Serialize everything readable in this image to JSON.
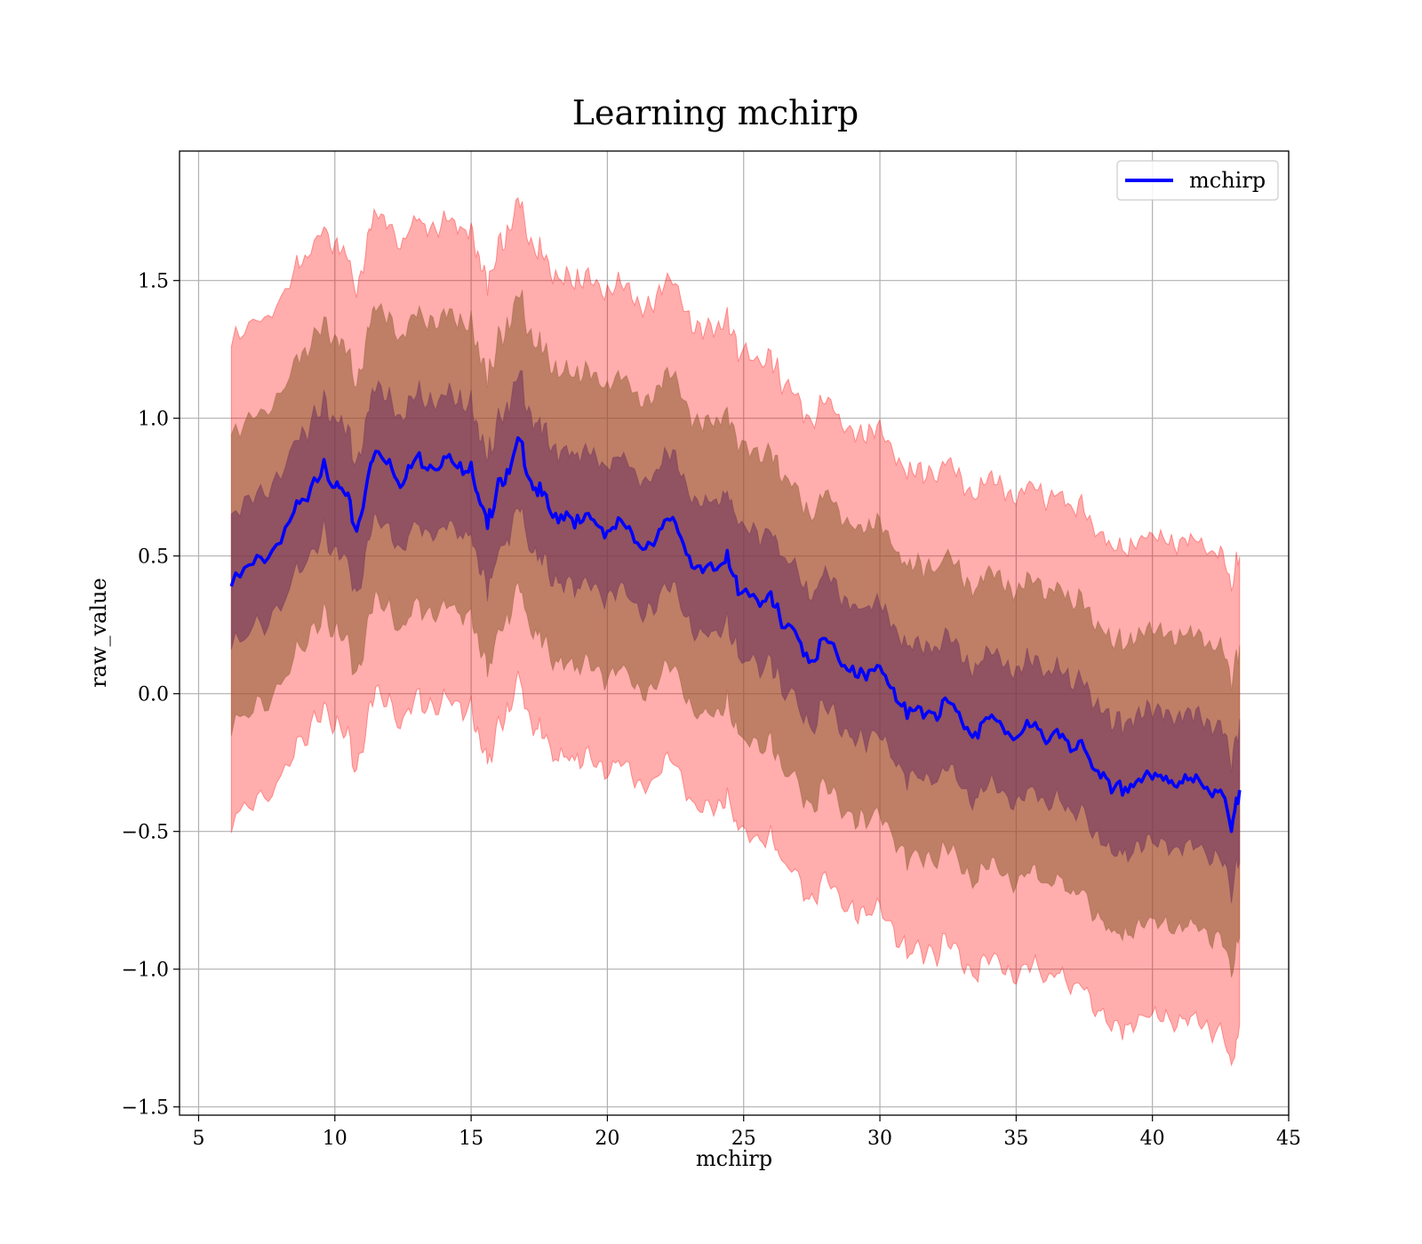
{
  "chart_data": {
    "type": "line",
    "title": "Learning mchirp",
    "xlabel": "mchirp",
    "ylabel": "raw_value",
    "xlim": [
      4.3,
      45
    ],
    "ylim": [
      -1.53,
      1.97
    ],
    "xticks": [
      5,
      10,
      15,
      20,
      25,
      30,
      35,
      40,
      45
    ],
    "xtick_labels": [
      "5",
      "10",
      "15",
      "20",
      "25",
      "30",
      "35",
      "40",
      "45"
    ],
    "yticks": [
      -1.5,
      -1.0,
      -0.5,
      0.0,
      0.5,
      1.0,
      1.5
    ],
    "ytick_labels": [
      "−1.5",
      "−1.0",
      "−0.5",
      "0.0",
      "0.5",
      "1.0",
      "1.5"
    ],
    "grid": true,
    "legend": {
      "position": "top-right",
      "entries": [
        "mchirp"
      ]
    },
    "colors": {
      "line": "#0000ff",
      "band_outer": "#ff0000",
      "band_mid": "#8b5a2b",
      "band_inner": "#6b2d5c"
    },
    "band_half_widths": [
      0.24,
      0.53,
      0.87
    ],
    "series": [
      {
        "name": "mchirp",
        "x": [
          6.2,
          7.0,
          7.7,
          8.5,
          9.0,
          9.6,
          10.0,
          10.4,
          10.8,
          11.2,
          11.5,
          12.0,
          12.5,
          13.0,
          13.5,
          14.0,
          14.5,
          15.0,
          15.3,
          15.6,
          16.0,
          16.4,
          16.8,
          17.2,
          17.6,
          18.0,
          18.5,
          19.0,
          19.5,
          20.0,
          20.5,
          21.0,
          21.5,
          22.0,
          22.5,
          23.0,
          23.5,
          24.0,
          24.4,
          24.8,
          25.5,
          26.0,
          26.4,
          27.0,
          27.5,
          28.0,
          28.5,
          29.0,
          29.5,
          30.0,
          30.5,
          31.0,
          31.5,
          32.0,
          32.5,
          33.0,
          33.5,
          34.0,
          34.5,
          35.0,
          35.5,
          36.0,
          36.5,
          37.0,
          37.5,
          38.0,
          38.5,
          39.0,
          39.5,
          40.0,
          40.5,
          41.0,
          41.5,
          42.0,
          42.5,
          42.9,
          43.2
        ],
        "y": [
          0.39,
          0.47,
          0.52,
          0.66,
          0.7,
          0.85,
          0.75,
          0.72,
          0.59,
          0.78,
          0.88,
          0.85,
          0.76,
          0.86,
          0.83,
          0.86,
          0.82,
          0.84,
          0.7,
          0.6,
          0.78,
          0.8,
          0.92,
          0.77,
          0.72,
          0.64,
          0.66,
          0.62,
          0.63,
          0.59,
          0.63,
          0.55,
          0.55,
          0.6,
          0.62,
          0.5,
          0.44,
          0.45,
          0.52,
          0.36,
          0.34,
          0.37,
          0.24,
          0.2,
          0.12,
          0.2,
          0.12,
          0.1,
          0.05,
          0.1,
          0.02,
          -0.09,
          -0.05,
          -0.07,
          -0.03,
          -0.1,
          -0.14,
          -0.09,
          -0.12,
          -0.16,
          -0.12,
          -0.16,
          -0.13,
          -0.21,
          -0.2,
          -0.28,
          -0.36,
          -0.34,
          -0.31,
          -0.31,
          -0.3,
          -0.32,
          -0.32,
          -0.34,
          -0.35,
          -0.5,
          -0.35
        ]
      }
    ]
  }
}
